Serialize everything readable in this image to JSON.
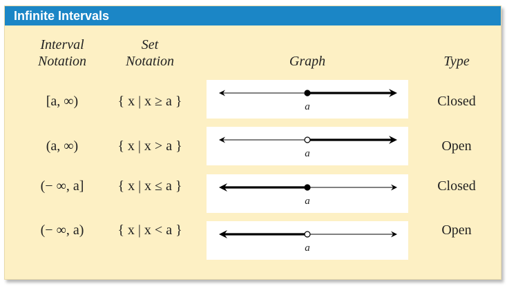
{
  "title": "Infinite Intervals",
  "headers": {
    "interval": [
      "Interval",
      "Notation"
    ],
    "set": [
      "Set",
      "Notation"
    ],
    "graph": "Graph",
    "type": "Type"
  },
  "rows": [
    {
      "interval": "[a, ∞)",
      "set": "{ x | x ≥ a }",
      "point_label": "a",
      "type": "Closed",
      "endpoint": "filled",
      "direction": "right"
    },
    {
      "interval": "(a, ∞)",
      "set": "{ x | x > a }",
      "point_label": "a",
      "type": "Open",
      "endpoint": "open",
      "direction": "right"
    },
    {
      "interval": "(− ∞, a]",
      "set": "{ x | x ≤ a }",
      "point_label": "a",
      "type": "Closed",
      "endpoint": "filled",
      "direction": "left"
    },
    {
      "interval": "(− ∞, a)",
      "set": "{ x | x < a }",
      "point_label": "a",
      "type": "Open",
      "endpoint": "open",
      "direction": "left"
    }
  ],
  "colors": {
    "title_bar": "#1b86c6",
    "panel": "#fdf0c4",
    "graph_bg": "#ffffff"
  }
}
